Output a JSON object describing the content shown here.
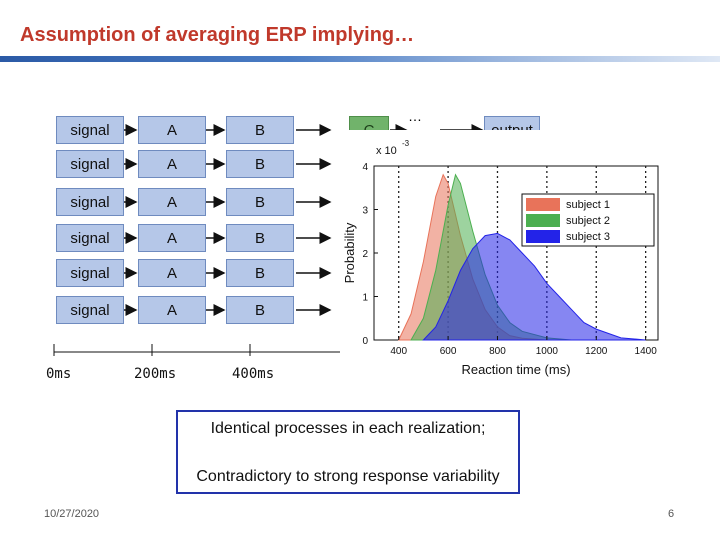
{
  "slide": {
    "title": "Assumption of averaging ERP implying…",
    "date": "10/27/2020",
    "page_number": "6",
    "title_color": "#c0392b"
  },
  "pipeline": {
    "signal_label": "signal",
    "a_label": "A",
    "b_label": "B",
    "c_label": "C",
    "ellipsis": "…",
    "output_label": "output",
    "rows": 6
  },
  "timeline": {
    "ticks": [
      "0ms",
      "200ms",
      "400ms"
    ]
  },
  "callout": {
    "line1": "Identical processes in each realization;",
    "line2": "Contradictory to strong response variability"
  },
  "chart_data": {
    "type": "area",
    "xlabel": "Reaction time (ms)",
    "ylabel": "Probability",
    "y_scale_label": "x 10",
    "y_scale_exponent": "-3",
    "xlim": [
      300,
      1450
    ],
    "ylim": [
      0,
      4
    ],
    "x_ticks": [
      400,
      600,
      800,
      1000,
      1200,
      1400
    ],
    "y_ticks": [
      0,
      1,
      2,
      3,
      4
    ],
    "dashed_gridlines_x": [
      400,
      600,
      800,
      1000,
      1200,
      1400
    ],
    "legend_position": "top-right",
    "series": [
      {
        "name": "subject 1",
        "color": "#e8735a",
        "x": [
          400,
          450,
          500,
          550,
          580,
          600,
          650,
          700,
          750,
          800,
          850,
          900,
          1000
        ],
        "y": [
          0.0,
          0.6,
          1.8,
          3.3,
          3.8,
          3.6,
          2.4,
          1.4,
          0.7,
          0.3,
          0.1,
          0.04,
          0.0
        ]
      },
      {
        "name": "subject 2",
        "color": "#4caf50",
        "x": [
          450,
          500,
          550,
          600,
          630,
          650,
          700,
          750,
          800,
          850,
          900,
          1000,
          1100
        ],
        "y": [
          0.0,
          0.5,
          1.6,
          3.1,
          3.8,
          3.6,
          2.5,
          1.5,
          0.8,
          0.4,
          0.2,
          0.05,
          0.0
        ]
      },
      {
        "name": "subject 3",
        "color": "#2323e8",
        "x": [
          500,
          550,
          600,
          650,
          700,
          750,
          800,
          850,
          900,
          950,
          1000,
          1050,
          1100,
          1150,
          1200,
          1300,
          1400
        ],
        "y": [
          0.0,
          0.3,
          0.9,
          1.6,
          2.1,
          2.4,
          2.45,
          2.3,
          2.0,
          1.7,
          1.3,
          1.0,
          0.7,
          0.4,
          0.25,
          0.05,
          0.0
        ]
      }
    ]
  }
}
